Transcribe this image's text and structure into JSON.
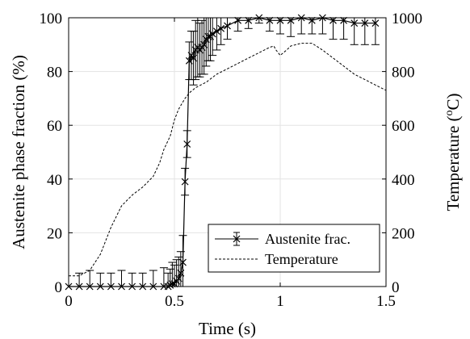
{
  "chart_data": {
    "type": "line",
    "xlabel": "Time (s)",
    "ylabel_left": "Austenite phase fraction (%)",
    "ylabel_right_base": "Temperature (",
    "ylabel_right_sup": "o",
    "ylabel_right_tail": "C)",
    "xlim": [
      0,
      1.5
    ],
    "ylim_left": [
      0,
      100
    ],
    "ylim_right": [
      0,
      1000
    ],
    "xticks": [
      0,
      0.5,
      1,
      1.5
    ],
    "xtick_labels": [
      "0",
      "0.5",
      "1",
      "1.5"
    ],
    "yticks_left": [
      0,
      20,
      40,
      60,
      80,
      100
    ],
    "ytick_labels_left": [
      "0",
      "20",
      "40",
      "60",
      "80",
      "100"
    ],
    "yticks_right": [
      0,
      200,
      400,
      600,
      800,
      1000
    ],
    "ytick_labels_right": [
      "0",
      "200",
      "400",
      "600",
      "800",
      "1000"
    ],
    "grid": true,
    "legend_position": "bottom-right",
    "series": [
      {
        "name": "Austenite frac.",
        "axis": "left",
        "style": "solid-x-errorbar",
        "x": [
          0,
          0.05,
          0.1,
          0.15,
          0.2,
          0.25,
          0.3,
          0.35,
          0.4,
          0.45,
          0.47,
          0.48,
          0.49,
          0.5,
          0.51,
          0.52,
          0.53,
          0.54,
          0.55,
          0.56,
          0.57,
          0.58,
          0.59,
          0.6,
          0.61,
          0.62,
          0.63,
          0.64,
          0.65,
          0.66,
          0.67,
          0.68,
          0.7,
          0.72,
          0.75,
          0.8,
          0.85,
          0.9,
          0.95,
          1.0,
          1.05,
          1.1,
          1.15,
          1.2,
          1.25,
          1.3,
          1.35,
          1.4,
          1.45
        ],
        "y": [
          0,
          0,
          0,
          0,
          0,
          0,
          0,
          0,
          0,
          0,
          0,
          0.5,
          1,
          1,
          2,
          3,
          5,
          9,
          39,
          53,
          84,
          86,
          85,
          88,
          89,
          88,
          89,
          90,
          92,
          93,
          93,
          94,
          95,
          96,
          97,
          99,
          99,
          100,
          99,
          99,
          99,
          100,
          99,
          100,
          99,
          99,
          98,
          98,
          98
        ],
        "err": [
          0,
          5,
          6,
          5,
          5,
          6,
          5,
          5,
          6,
          7,
          5,
          6,
          8,
          7,
          8,
          8,
          8,
          10,
          5,
          5,
          7,
          9,
          10,
          11,
          11,
          10,
          10,
          11,
          10,
          9,
          9,
          8,
          7,
          6,
          5,
          4,
          3,
          2,
          4,
          5,
          6,
          6,
          5,
          6,
          7,
          7,
          8,
          8,
          8
        ]
      },
      {
        "name": "Temperature",
        "axis": "right",
        "style": "dashed",
        "x": [
          0,
          0.05,
          0.1,
          0.15,
          0.2,
          0.25,
          0.3,
          0.35,
          0.4,
          0.43,
          0.45,
          0.48,
          0.5,
          0.52,
          0.55,
          0.57,
          0.6,
          0.65,
          0.7,
          0.75,
          0.8,
          0.85,
          0.9,
          0.95,
          0.97,
          0.98,
          1.0,
          1.03,
          1.05,
          1.1,
          1.15,
          1.2,
          1.25,
          1.3,
          1.35,
          1.4,
          1.45,
          1.5
        ],
        "y": [
          40,
          40,
          60,
          120,
          220,
          300,
          340,
          370,
          410,
          460,
          510,
          560,
          620,
          660,
          700,
          720,
          740,
          760,
          790,
          810,
          830,
          850,
          870,
          890,
          895,
          880,
          860,
          880,
          895,
          905,
          905,
          880,
          850,
          820,
          790,
          770,
          750,
          730
        ]
      }
    ]
  }
}
